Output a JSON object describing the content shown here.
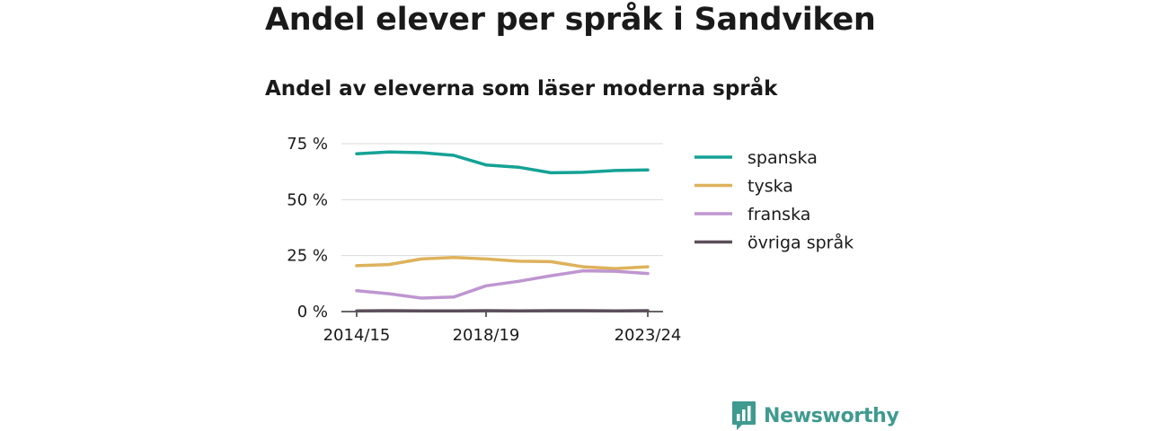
{
  "title": "Andel elever per språk i Sandviken",
  "subtitle": "Andel av eleverna som läser moderna språk",
  "brand": {
    "name": "Newsworthy",
    "color": "#3f9a8f"
  },
  "chart_data": {
    "type": "line",
    "x": [
      "2014/15",
      "2015/16",
      "2016/17",
      "2017/18",
      "2018/19",
      "2019/20",
      "2020/21",
      "2021/22",
      "2022/23",
      "2023/24"
    ],
    "xticks": [
      "2014/15",
      "2018/19",
      "2023/24"
    ],
    "yticks": [
      0,
      25,
      50,
      75
    ],
    "ytick_labels": [
      "0 %",
      "25 %",
      "50 %",
      "75 %"
    ],
    "ylim": [
      0,
      75
    ],
    "grid": true,
    "legend": "right",
    "series": [
      {
        "name": "spanska",
        "color": "#14a295",
        "values": [
          70.5,
          71.3,
          71.0,
          69.8,
          65.5,
          64.5,
          62.0,
          62.2,
          63.0,
          63.3
        ]
      },
      {
        "name": "tyska",
        "color": "#deb25c",
        "values": [
          20.5,
          21.0,
          23.5,
          24.2,
          23.5,
          22.5,
          22.3,
          20.0,
          19.2,
          20.0
        ]
      },
      {
        "name": "franska",
        "color": "#be96d0",
        "values": [
          9.3,
          8.0,
          6.0,
          6.5,
          11.5,
          13.5,
          16.0,
          18.2,
          18.0,
          17.0
        ]
      },
      {
        "name": "övriga språk",
        "color": "#5b4e5a",
        "values": [
          0.3,
          0.4,
          0.3,
          0.3,
          0.4,
          0.3,
          0.4,
          0.4,
          0.3,
          0.4
        ]
      }
    ]
  }
}
